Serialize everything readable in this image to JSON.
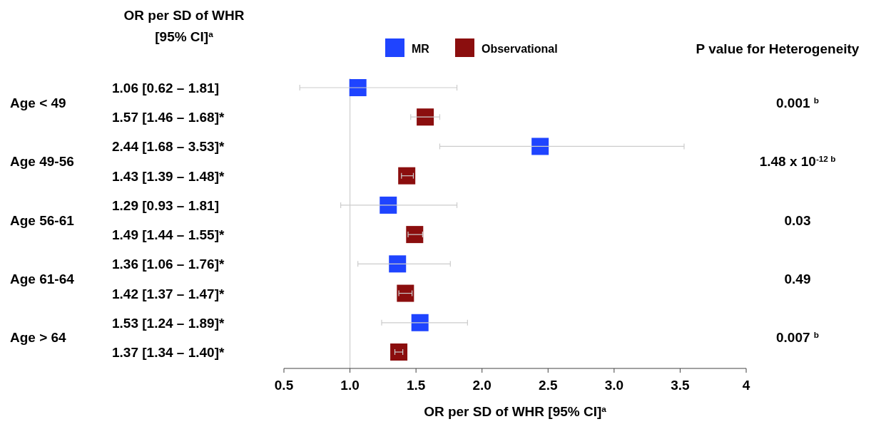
{
  "chart_data": {
    "type": "scatter",
    "orientation": "horizontal",
    "categories": [
      "1.06 [0.62 – 1.81]",
      "1.57 [1.46 – 1.68]*",
      "2.44 [1.68 – 3.53]*",
      "1.43 [1.39 – 1.48]*",
      "1.29 [0.93 – 1.81]",
      "1.49 [1.44 – 1.55]*",
      "1.36 [1.06 – 1.76]*",
      "1.42 [1.37 – 1.47]*",
      "1.53 [1.24 – 1.89]*",
      "1.37 [1.34 – 1.40]*"
    ],
    "series": [
      {
        "name": "MR",
        "color": "#1f44ff",
        "values": [
          1.06,
          null,
          2.44,
          null,
          1.29,
          null,
          1.36,
          null,
          1.53,
          null
        ],
        "errors": [
          [
            0.62,
            1.81
          ],
          null,
          [
            1.68,
            3.53
          ],
          null,
          [
            0.93,
            1.81
          ],
          null,
          [
            1.06,
            1.76
          ],
          null,
          [
            1.24,
            1.89
          ],
          null
        ]
      },
      {
        "name": "Observational",
        "color": "#8b0e0e",
        "values": [
          null,
          1.57,
          null,
          1.43,
          null,
          1.49,
          null,
          1.42,
          null,
          1.37
        ],
        "errors": [
          null,
          [
            1.46,
            1.68
          ],
          null,
          [
            1.39,
            1.48
          ],
          null,
          [
            1.44,
            1.55
          ],
          null,
          [
            1.37,
            1.47
          ],
          null,
          [
            1.34,
            1.4
          ]
        ]
      }
    ],
    "xlim": [
      0.5,
      4
    ],
    "xticks": [
      0.5,
      {
        "value": 1,
        "label": "1.0"
      },
      1.5,
      {
        "value": 2,
        "label": "2.0"
      },
      2.5,
      {
        "value": 3,
        "label": "3.0"
      },
      3.5,
      4
    ],
    "xlabel": "OR per SD of WHR [95% CI]$^{a}$",
    "ref_lines": [
      {
        "axis": "x",
        "value": 1,
        "color": "#cccccc"
      }
    ],
    "marker": "square",
    "legend": "top",
    "grid": false,
    "annotations": [
      "OR per SD of WHR",
      "[95% CI]$^{a}$",
      "Age < 49",
      "Age 49-56",
      "Age 56-61",
      "Age 61-64",
      "Age > 64",
      "P value for Heterogeneity",
      "0.001 $^{b}$",
      "1.48 x 10$^{-12 b}$",
      "0.03",
      "0.49",
      "0.007 $^{b}$"
    ]
  }
}
